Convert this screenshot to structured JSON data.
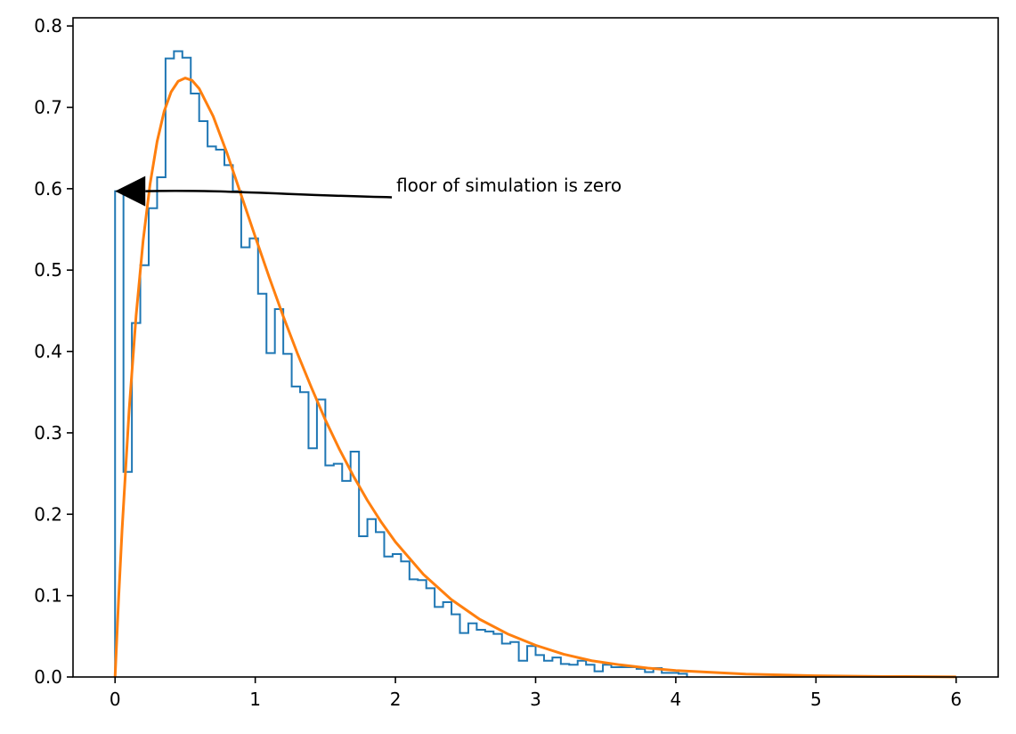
{
  "chart_data": {
    "type": "line",
    "title": "",
    "xlabel": "",
    "ylabel": "",
    "xlim": [
      -0.3,
      6.3
    ],
    "ylim": [
      0.0,
      0.81
    ],
    "xticks": [
      0,
      1,
      2,
      3,
      4,
      5,
      6
    ],
    "xtick_labels": [
      "0",
      "1",
      "2",
      "3",
      "4",
      "5",
      "6"
    ],
    "yticks": [
      0.0,
      0.1,
      0.2,
      0.3,
      0.4,
      0.5,
      0.6,
      0.7,
      0.8
    ],
    "ytick_labels": [
      "0.0",
      "0.1",
      "0.2",
      "0.3",
      "0.4",
      "0.5",
      "0.6",
      "0.7",
      "0.8"
    ],
    "grid": false,
    "legend": "none",
    "series": [
      {
        "kind": "step-histogram",
        "color": "#1f77b4",
        "bin_edges": [
          0.0,
          0.06,
          0.12,
          0.18,
          0.24,
          0.3,
          0.36,
          0.42,
          0.48,
          0.54,
          0.6,
          0.66,
          0.72,
          0.78,
          0.84,
          0.9,
          0.96,
          1.02,
          1.08,
          1.14,
          1.2,
          1.26,
          1.32,
          1.38,
          1.44,
          1.5,
          1.56,
          1.62,
          1.68,
          1.74,
          1.8,
          1.86,
          1.92,
          1.98,
          2.04,
          2.1,
          2.16,
          2.22,
          2.28,
          2.34,
          2.4,
          2.46,
          2.52,
          2.58,
          2.64,
          2.7,
          2.76,
          2.82,
          2.88,
          2.94,
          3.0,
          3.06,
          3.12,
          3.18,
          3.24,
          3.3,
          3.36,
          3.42,
          3.48,
          3.54,
          3.6,
          3.66,
          3.72,
          3.78,
          3.84,
          3.9,
          3.96,
          4.02,
          4.08
        ],
        "values": [
          0.597,
          0.252,
          0.435,
          0.506,
          0.576,
          0.614,
          0.76,
          0.769,
          0.761,
          0.717,
          0.683,
          0.652,
          0.648,
          0.629,
          0.597,
          0.528,
          0.539,
          0.471,
          0.398,
          0.452,
          0.397,
          0.357,
          0.35,
          0.281,
          0.341,
          0.26,
          0.262,
          0.241,
          0.277,
          0.173,
          0.194,
          0.178,
          0.148,
          0.151,
          0.142,
          0.12,
          0.119,
          0.109,
          0.086,
          0.092,
          0.077,
          0.054,
          0.066,
          0.058,
          0.056,
          0.053,
          0.041,
          0.043,
          0.02,
          0.038,
          0.027,
          0.02,
          0.024,
          0.016,
          0.015,
          0.02,
          0.015,
          0.007,
          0.015,
          0.012,
          0.012,
          0.012,
          0.01,
          0.006,
          0.011,
          0.005,
          0.005,
          0.004
        ]
      },
      {
        "kind": "curve",
        "color": "#ff7f0e",
        "formula": "4*x*exp(-2x)*... fitted density",
        "x": [
          0.0,
          0.025,
          0.05,
          0.1,
          0.15,
          0.2,
          0.25,
          0.3,
          0.35,
          0.4,
          0.45,
          0.5,
          0.55,
          0.6,
          0.7,
          0.8,
          0.9,
          1.0,
          1.1,
          1.2,
          1.3,
          1.4,
          1.5,
          1.6,
          1.7,
          1.8,
          1.9,
          2.0,
          2.2,
          2.4,
          2.6,
          2.8,
          3.0,
          3.2,
          3.4,
          3.6,
          3.8,
          4.0,
          4.5,
          5.0,
          5.5,
          6.0
        ],
        "values": [
          0.0,
          0.095,
          0.181,
          0.327,
          0.444,
          0.536,
          0.606,
          0.658,
          0.695,
          0.719,
          0.732,
          0.736,
          0.733,
          0.723,
          0.689,
          0.643,
          0.592,
          0.541,
          0.491,
          0.443,
          0.398,
          0.356,
          0.316,
          0.28,
          0.247,
          0.217,
          0.19,
          0.166,
          0.126,
          0.095,
          0.071,
          0.053,
          0.039,
          0.028,
          0.02,
          0.015,
          0.011,
          0.008,
          0.0035,
          0.0015,
          0.0006,
          0.0002
        ]
      }
    ],
    "annotations": [
      {
        "text": "floor of simulation is zero",
        "xy": [
          0.0,
          0.597
        ],
        "xytext": [
          2.0,
          0.59
        ]
      }
    ]
  }
}
